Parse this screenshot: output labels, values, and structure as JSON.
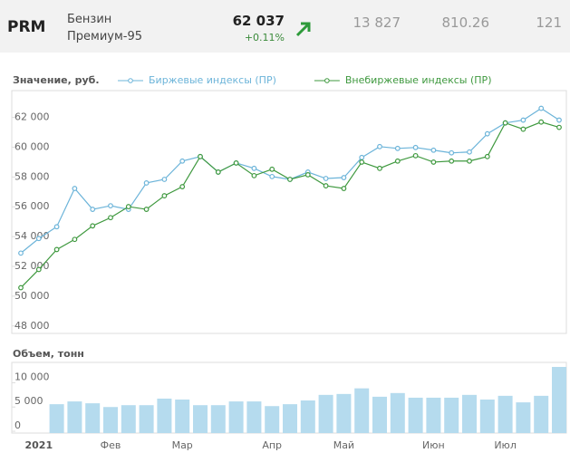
{
  "header": {
    "ticker": "PRM",
    "name_line1": "Бензин",
    "name_line2": "Премиум-95",
    "price": "62 037",
    "change": "+0.11%",
    "stats": [
      "13 827",
      "810.26",
      "121"
    ]
  },
  "chart_data": [
    {
      "type": "line",
      "y_label": "Значение, руб.",
      "ylim": [
        47500,
        63800
      ],
      "yticks": [
        {
          "value": 48000,
          "label": "48 000"
        },
        {
          "value": 50000,
          "label": "50 000"
        },
        {
          "value": 52000,
          "label": "52 000"
        },
        {
          "value": 54000,
          "label": "54 000"
        },
        {
          "value": 56000,
          "label": "56 000"
        },
        {
          "value": 58000,
          "label": "58 000"
        },
        {
          "value": 60000,
          "label": "60 000"
        },
        {
          "value": 62000,
          "label": "62 000"
        }
      ],
      "series": [
        {
          "name": "Биржевые индексы (ПР)",
          "color": "#6cb4d9",
          "values": [
            52890,
            53870,
            54660,
            57230,
            55830,
            56070,
            55830,
            57600,
            57840,
            59070,
            59370,
            58330,
            58940,
            58580,
            58030,
            57840,
            58330,
            57900,
            57960,
            59310,
            60040,
            59920,
            59980,
            59800,
            59620,
            59680,
            60900,
            61630,
            61820,
            62610,
            61820
          ]
        },
        {
          "name": "Внебиржевые индексы (ПР)",
          "color": "#3f993f",
          "values": [
            50570,
            51790,
            53130,
            53810,
            54720,
            55270,
            56010,
            55830,
            56740,
            57350,
            59370,
            58330,
            58940,
            58090,
            58520,
            57840,
            58150,
            57410,
            57230,
            59000,
            58580,
            59070,
            59430,
            59000,
            59070,
            59070,
            59370,
            61630,
            61210,
            61690,
            61330
          ]
        }
      ]
    },
    {
      "type": "bar",
      "y_label": "Объем, тонн",
      "color": "#b5dbee",
      "ylim": [
        0,
        14200
      ],
      "yticks": [
        0,
        {
          "value": 5000,
          "label": "5 000"
        },
        {
          "value": 10000,
          "label": "10 000"
        }
      ],
      "categories": [
        null,
        "2021",
        null,
        null,
        null,
        "Фев",
        null,
        null,
        null,
        "Мар",
        null,
        null,
        null,
        null,
        "Апр",
        null,
        null,
        null,
        "Май",
        null,
        null,
        null,
        null,
        "Июн",
        null,
        null,
        null,
        "Июл",
        null,
        null,
        null
      ],
      "values": [
        null,
        null,
        5580,
        6150,
        5770,
        5000,
        5380,
        5380,
        6730,
        6540,
        5380,
        5380,
        6150,
        6150,
        5190,
        5580,
        6350,
        7500,
        7690,
        8850,
        7120,
        7880,
        6920,
        6920,
        6920,
        7500,
        6540,
        7310,
        5960,
        7310,
        13270
      ]
    }
  ]
}
